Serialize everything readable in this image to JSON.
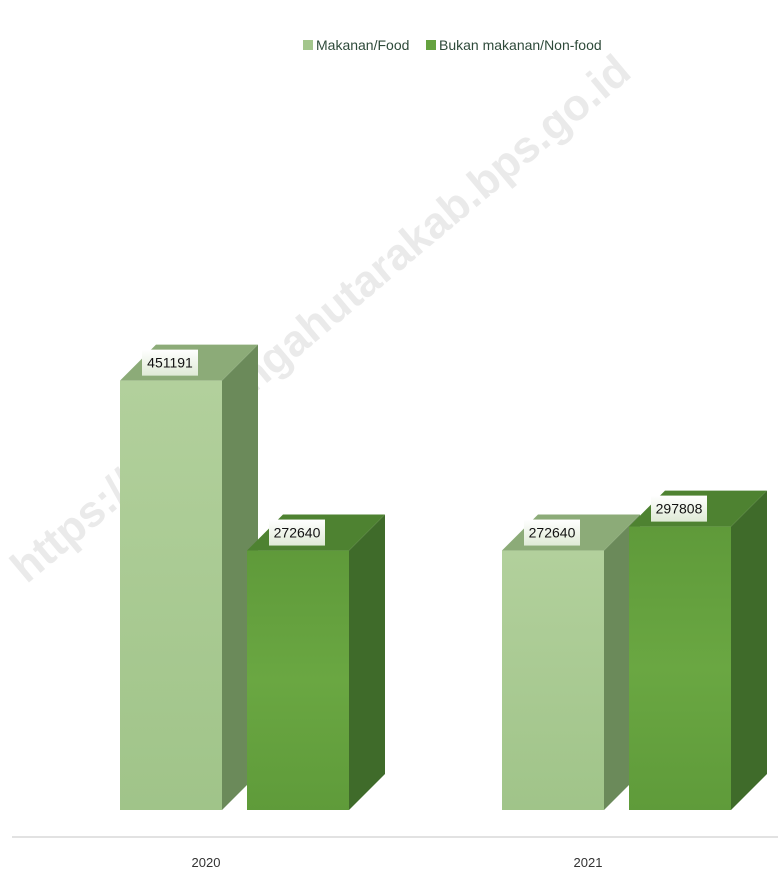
{
  "chart_data": {
    "type": "bar",
    "categories": [
      "2020",
      "2021"
    ],
    "series": [
      {
        "name": "Makanan/Food",
        "values": [
          451191,
          272640
        ]
      },
      {
        "name": "Bukan makanan/Non-food",
        "values": [
          272640,
          297808
        ]
      }
    ],
    "ylim": [
      0,
      620000
    ],
    "grid": false,
    "legend_position": "top",
    "data_labels": true,
    "style": "3d-column",
    "colors": {
      "Makanan/Food": {
        "front": "#a3c68c",
        "side": "#6b8a5a",
        "top": "#8cab78"
      },
      "Bukan makanan/Non-food": {
        "front": "#65a23f",
        "side": "#3f6b2a",
        "top": "#4e8231"
      }
    }
  },
  "watermark": "https://timortengahutarakab.bps.go.id"
}
